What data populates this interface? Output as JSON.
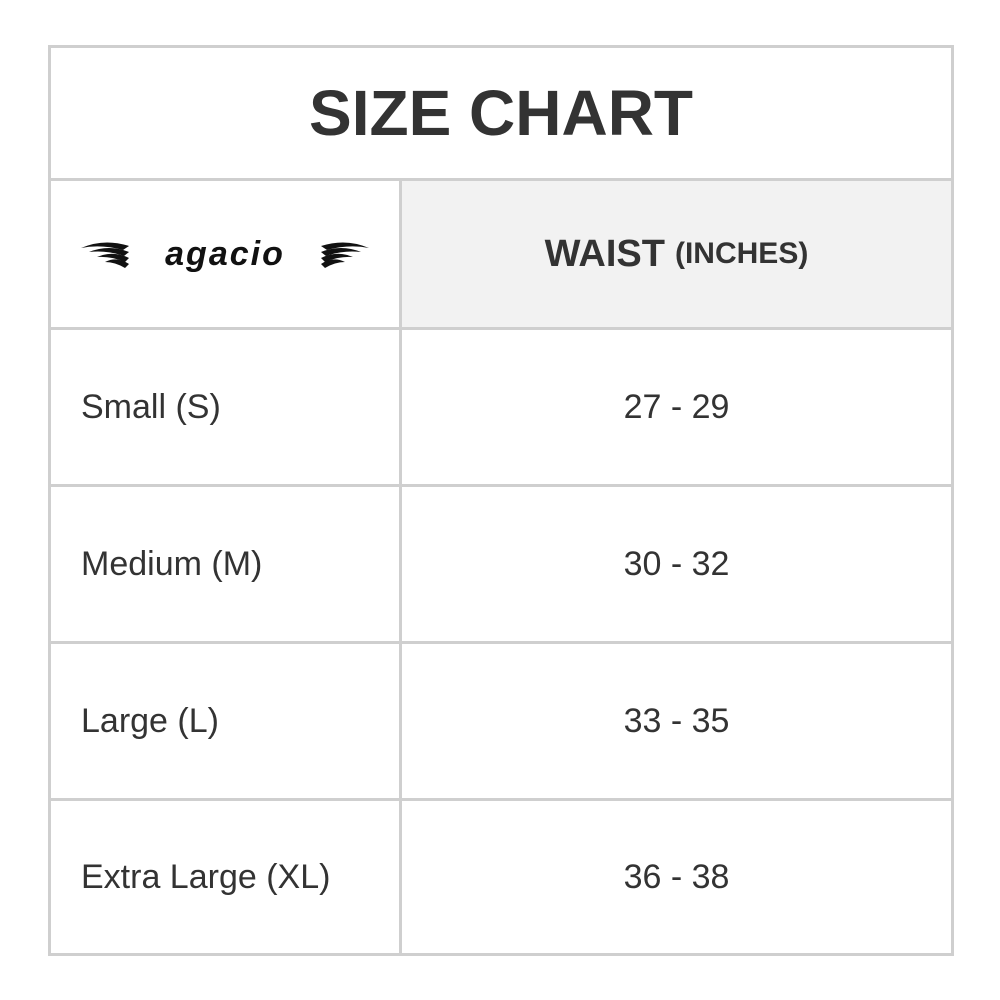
{
  "title": "SIZE CHART",
  "logo": {
    "text": "agacio",
    "icon": "wings-logo"
  },
  "header": {
    "column": "WAIST",
    "unit": "(INCHES)"
  },
  "rows": [
    {
      "size": "Small (S)",
      "waist": "27 - 29"
    },
    {
      "size": "Medium (M)",
      "waist": "30 - 32"
    },
    {
      "size": "Large (L)",
      "waist": "33 - 35"
    },
    {
      "size": "Extra Large (XL)",
      "waist": "36 - 38"
    }
  ],
  "colors": {
    "border": "#cfcfcf",
    "header_bg": "#f2f2f2",
    "text": "#333333"
  }
}
